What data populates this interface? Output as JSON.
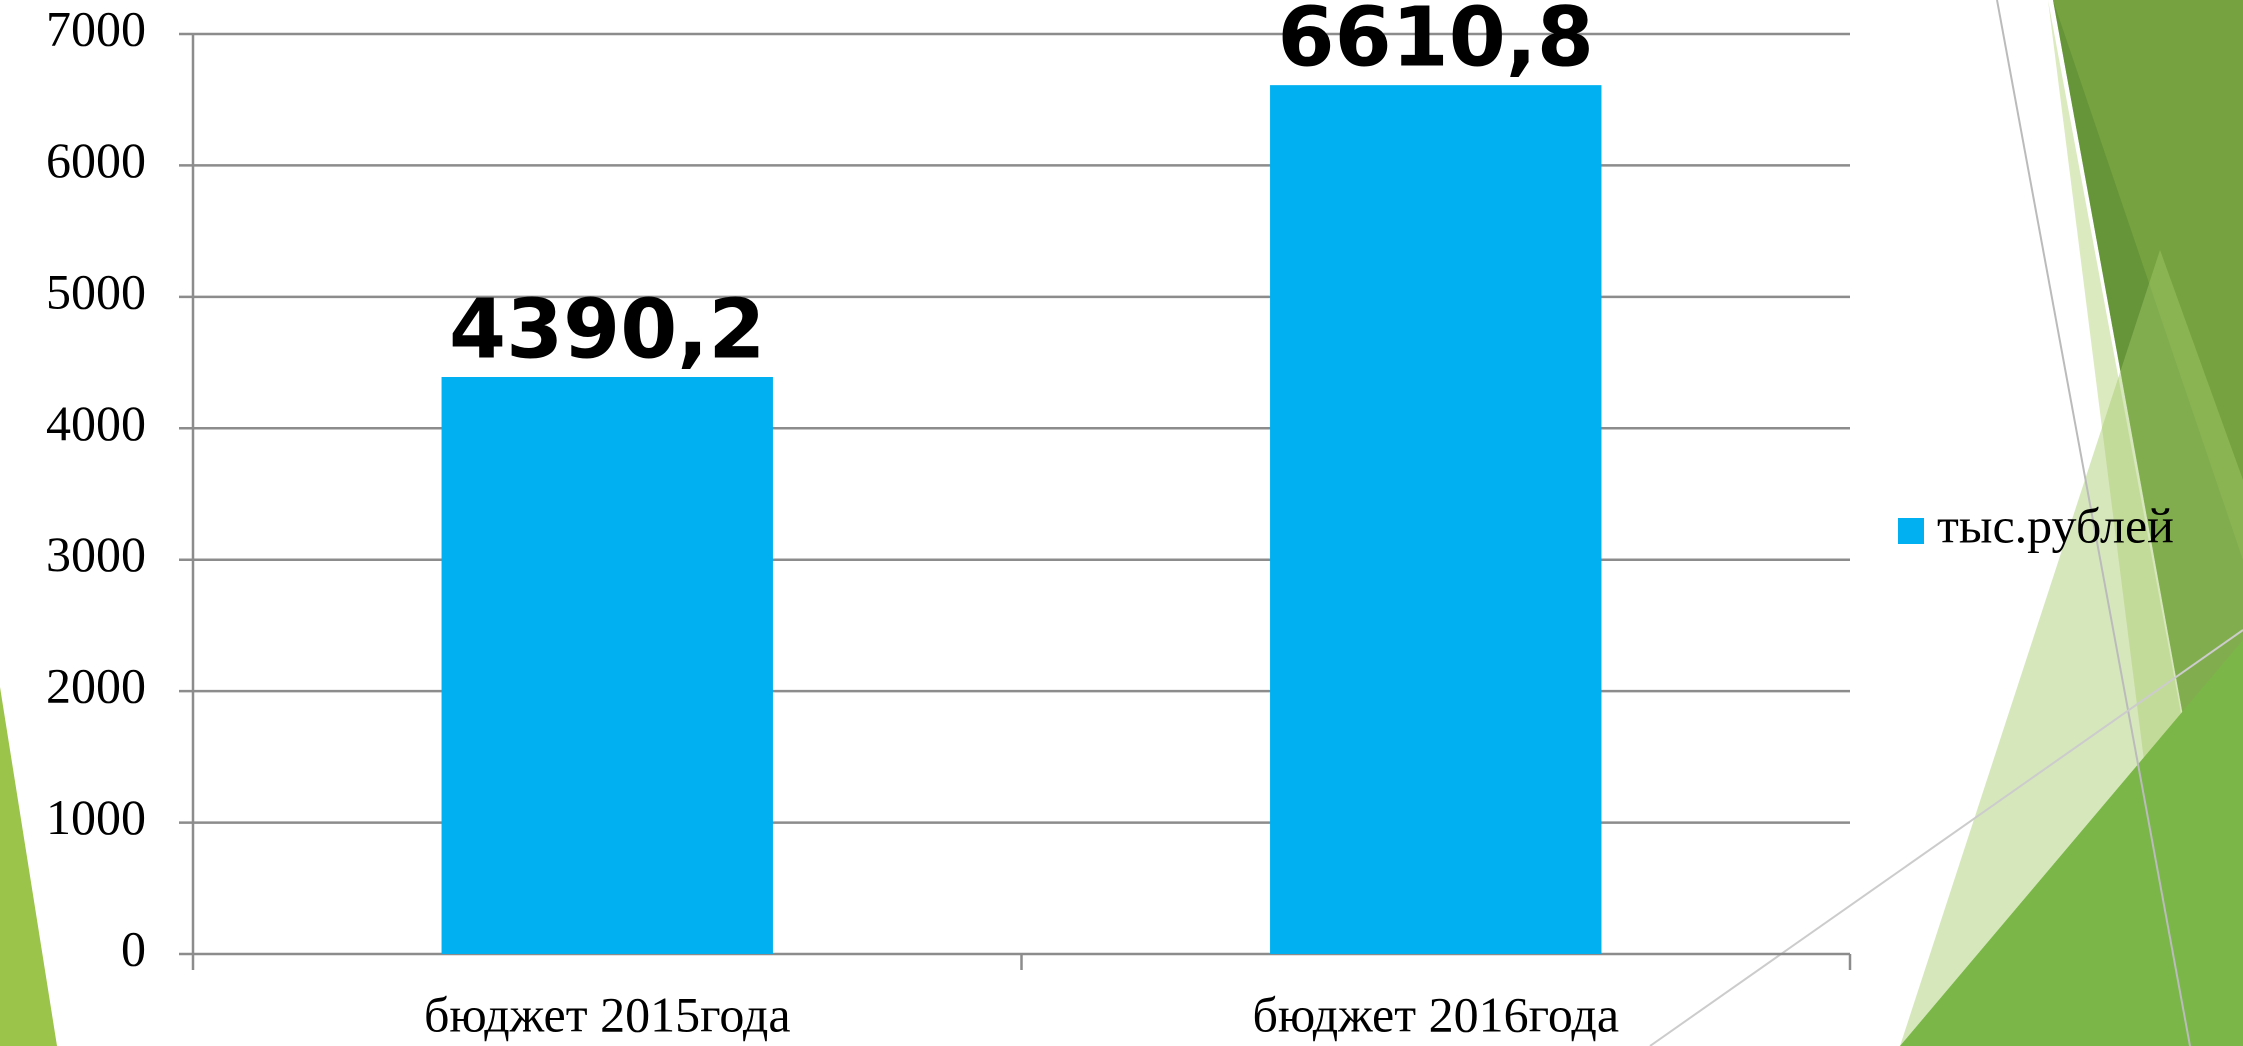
{
  "chart_data": {
    "type": "bar",
    "categories": [
      "бюджет 2015года",
      "бюджет 2016года"
    ],
    "series": [
      {
        "name": "тыс.рублей",
        "color": "#00b0f0",
        "values": [
          4390.2,
          6610.8
        ],
        "value_labels": [
          "4390,2",
          "6610,8"
        ]
      }
    ],
    "ylim": [
      0,
      7000
    ],
    "yticks": [
      0,
      1000,
      2000,
      3000,
      4000,
      5000,
      6000,
      7000
    ],
    "grid": true,
    "legend": "right"
  }
}
